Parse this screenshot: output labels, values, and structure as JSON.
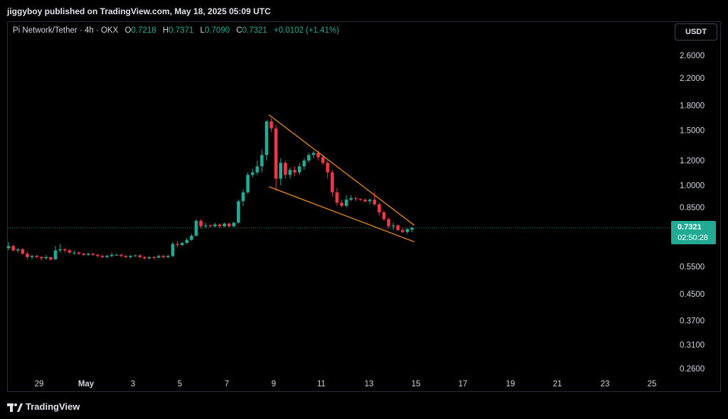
{
  "header": {
    "published": "jiggyboy published on TradingView.com, May 18, 2025 05:09 UTC"
  },
  "legend": {
    "symbol": "Pi Network/Tether · 4h · OKX",
    "open_label": "O",
    "open": "0.7218",
    "high_label": "H",
    "high": "0.7371",
    "low_label": "L",
    "low": "0.7090",
    "close_label": "C",
    "close": "0.7321",
    "change": "+0.0102 (+1.41%)"
  },
  "currency_button": "USDT",
  "last_price": {
    "price": "0.7321",
    "countdown": "02:50:28"
  },
  "footer": {
    "brand": "TradingView"
  },
  "colors": {
    "up": "#22ab94",
    "down": "#f23645",
    "trendline": "#f7931a",
    "background": "#000000",
    "grid_text": "#d1d4dc"
  },
  "chart_data": {
    "type": "candlestick",
    "y_scale": "log",
    "y_ticks": [
      "2.6000",
      "2.2000",
      "1.8000",
      "1.5000",
      "1.2000",
      "1.0000",
      "0.8500",
      "0.5500",
      "0.4500",
      "0.3700",
      "0.3100",
      "0.2600"
    ],
    "x_ticks": [
      "29",
      "May",
      "3",
      "5",
      "7",
      "9",
      "11",
      "13",
      "15",
      "17",
      "19",
      "21",
      "23",
      "25"
    ],
    "ohlc": [
      [
        0.63,
        0.66,
        0.62,
        0.64
      ],
      [
        0.64,
        0.645,
        0.615,
        0.62
      ],
      [
        0.62,
        0.63,
        0.61,
        0.625
      ],
      [
        0.625,
        0.63,
        0.6,
        0.605
      ],
      [
        0.605,
        0.615,
        0.58,
        0.59
      ],
      [
        0.59,
        0.6,
        0.58,
        0.595
      ],
      [
        0.595,
        0.6,
        0.585,
        0.59
      ],
      [
        0.59,
        0.595,
        0.575,
        0.585
      ],
      [
        0.585,
        0.6,
        0.58,
        0.59
      ],
      [
        0.59,
        0.59,
        0.575,
        0.58
      ],
      [
        0.58,
        0.64,
        0.58,
        0.62
      ],
      [
        0.62,
        0.65,
        0.61,
        0.625
      ],
      [
        0.625,
        0.63,
        0.61,
        0.62
      ],
      [
        0.62,
        0.625,
        0.605,
        0.61
      ],
      [
        0.61,
        0.62,
        0.6,
        0.61
      ],
      [
        0.61,
        0.615,
        0.6,
        0.605
      ],
      [
        0.605,
        0.61,
        0.595,
        0.6
      ],
      [
        0.6,
        0.61,
        0.595,
        0.605
      ],
      [
        0.605,
        0.61,
        0.595,
        0.6
      ],
      [
        0.6,
        0.605,
        0.59,
        0.595
      ],
      [
        0.595,
        0.6,
        0.585,
        0.59
      ],
      [
        0.59,
        0.6,
        0.585,
        0.595
      ],
      [
        0.595,
        0.61,
        0.59,
        0.6
      ],
      [
        0.6,
        0.605,
        0.595,
        0.6
      ],
      [
        0.6,
        0.605,
        0.59,
        0.595
      ],
      [
        0.595,
        0.6,
        0.585,
        0.59
      ],
      [
        0.59,
        0.6,
        0.585,
        0.595
      ],
      [
        0.595,
        0.6,
        0.59,
        0.598
      ],
      [
        0.598,
        0.6,
        0.585,
        0.59
      ],
      [
        0.59,
        0.595,
        0.58,
        0.585
      ],
      [
        0.585,
        0.595,
        0.58,
        0.59
      ],
      [
        0.59,
        0.595,
        0.58,
        0.588
      ],
      [
        0.588,
        0.6,
        0.585,
        0.595
      ],
      [
        0.595,
        0.6,
        0.585,
        0.59
      ],
      [
        0.59,
        0.6,
        0.585,
        0.595
      ],
      [
        0.595,
        0.66,
        0.59,
        0.65
      ],
      [
        0.65,
        0.665,
        0.635,
        0.645
      ],
      [
        0.645,
        0.66,
        0.64,
        0.655
      ],
      [
        0.655,
        0.68,
        0.65,
        0.67
      ],
      [
        0.67,
        0.7,
        0.665,
        0.69
      ],
      [
        0.69,
        0.78,
        0.69,
        0.77
      ],
      [
        0.77,
        0.78,
        0.73,
        0.74
      ],
      [
        0.74,
        0.76,
        0.73,
        0.745
      ],
      [
        0.745,
        0.75,
        0.735,
        0.74
      ],
      [
        0.74,
        0.76,
        0.735,
        0.75
      ],
      [
        0.75,
        0.755,
        0.73,
        0.74
      ],
      [
        0.74,
        0.76,
        0.735,
        0.755
      ],
      [
        0.755,
        0.76,
        0.735,
        0.74
      ],
      [
        0.74,
        0.765,
        0.735,
        0.76
      ],
      [
        0.76,
        0.9,
        0.755,
        0.89
      ],
      [
        0.89,
        0.97,
        0.86,
        0.95
      ],
      [
        0.95,
        1.1,
        0.94,
        1.08
      ],
      [
        1.08,
        1.13,
        1.06,
        1.1
      ],
      [
        1.1,
        1.2,
        1.08,
        1.15
      ],
      [
        1.15,
        1.3,
        1.1,
        1.25
      ],
      [
        1.25,
        1.62,
        1.2,
        1.6
      ],
      [
        1.6,
        1.64,
        1.48,
        1.52
      ],
      [
        1.52,
        1.56,
        0.96,
        1.05
      ],
      [
        1.05,
        1.22,
        1.0,
        1.18
      ],
      [
        1.18,
        1.2,
        1.05,
        1.08
      ],
      [
        1.08,
        1.14,
        1.05,
        1.12
      ],
      [
        1.12,
        1.15,
        1.07,
        1.1
      ],
      [
        1.1,
        1.18,
        1.08,
        1.15
      ],
      [
        1.15,
        1.22,
        1.12,
        1.2
      ],
      [
        1.2,
        1.27,
        1.18,
        1.25
      ],
      [
        1.25,
        1.29,
        1.22,
        1.27
      ],
      [
        1.27,
        1.29,
        1.2,
        1.23
      ],
      [
        1.23,
        1.25,
        1.16,
        1.18
      ],
      [
        1.18,
        1.2,
        1.05,
        1.1
      ],
      [
        1.1,
        1.12,
        0.92,
        0.95
      ],
      [
        0.95,
        0.98,
        0.86,
        0.88
      ],
      [
        0.88,
        0.9,
        0.85,
        0.86
      ],
      [
        0.86,
        0.93,
        0.85,
        0.9
      ],
      [
        0.9,
        0.93,
        0.89,
        0.91
      ],
      [
        0.91,
        0.92,
        0.89,
        0.905
      ],
      [
        0.905,
        0.91,
        0.89,
        0.9
      ],
      [
        0.9,
        0.91,
        0.88,
        0.89
      ],
      [
        0.89,
        0.91,
        0.87,
        0.9
      ],
      [
        0.9,
        0.95,
        0.86,
        0.87
      ],
      [
        0.87,
        0.88,
        0.8,
        0.82
      ],
      [
        0.82,
        0.83,
        0.77,
        0.78
      ],
      [
        0.78,
        0.79,
        0.73,
        0.74
      ],
      [
        0.74,
        0.76,
        0.72,
        0.745
      ],
      [
        0.745,
        0.75,
        0.715,
        0.72
      ],
      [
        0.72,
        0.73,
        0.705,
        0.71
      ],
      [
        0.71,
        0.73,
        0.7,
        0.725
      ],
      [
        0.7218,
        0.7371,
        0.709,
        0.7321
      ]
    ],
    "last_price": 0.7321,
    "last_price_label": "0.7321",
    "countdown": "02:50:28",
    "annotations": [
      {
        "type": "trendline",
        "name": "upper-trendline",
        "from": [
          55.5,
          1.68
        ],
        "to": [
          86.5,
          0.745
        ]
      },
      {
        "type": "trendline",
        "name": "lower-trendline",
        "from": [
          55.5,
          0.99
        ],
        "to": [
          86.5,
          0.66
        ]
      }
    ]
  }
}
